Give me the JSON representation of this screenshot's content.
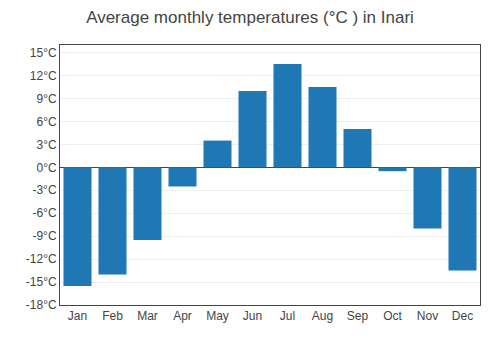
{
  "chart_data": {
    "type": "bar",
    "title": "Average monthly temperatures (°C ) in Inari",
    "categories": [
      "Jan",
      "Feb",
      "Mar",
      "Apr",
      "May",
      "Jun",
      "Jul",
      "Aug",
      "Sep",
      "Oct",
      "Nov",
      "Dec"
    ],
    "values": [
      -15.5,
      -14.0,
      -9.5,
      -2.5,
      3.5,
      10.0,
      13.5,
      10.5,
      5.0,
      -0.5,
      -8.0,
      -13.5
    ],
    "ylim": [
      -18,
      16
    ],
    "yticks": [
      {
        "value": -18,
        "label": "-18°C"
      },
      {
        "value": -15,
        "label": "-15°C"
      },
      {
        "value": -12,
        "label": "-12°C"
      },
      {
        "value": -9,
        "label": "-9°C"
      },
      {
        "value": -6,
        "label": "-6°C"
      },
      {
        "value": -3,
        "label": "-3°C"
      },
      {
        "value": 0,
        "label": "0°C"
      },
      {
        "value": 3,
        "label": "3°C"
      },
      {
        "value": 6,
        "label": "6°C"
      },
      {
        "value": 9,
        "label": "9°C"
      },
      {
        "value": 12,
        "label": "12°C"
      },
      {
        "value": 15,
        "label": "15°C"
      }
    ],
    "grid": true
  }
}
